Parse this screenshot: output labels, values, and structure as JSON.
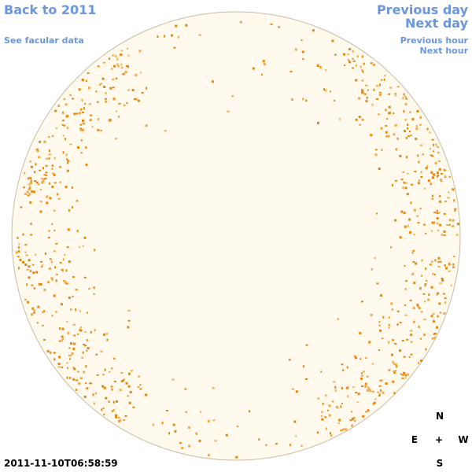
{
  "header": {
    "back_link": "Back to 2011",
    "facular_link": "See facular data",
    "previous_day": "Previous day",
    "next_day": "Next day",
    "previous_hour": "Previous hour",
    "next_hour": "Next hour"
  },
  "timestamp": "2011-11-10T06:58:59",
  "compass": {
    "north": "N",
    "east": "E",
    "center": "+",
    "west": "W",
    "south": "S"
  }
}
